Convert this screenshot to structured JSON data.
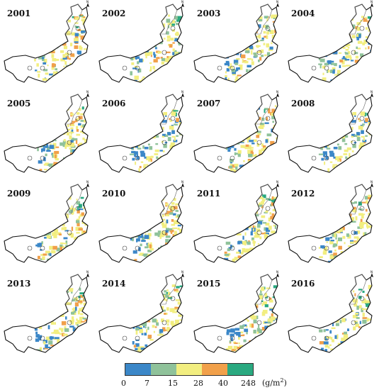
{
  "years": [
    "2001",
    "2002",
    "2003",
    "2004",
    "2005",
    "2006",
    "2007",
    "2008",
    "2009",
    "2010",
    "2011",
    "2012",
    "2013",
    "2014",
    "2015",
    "2016"
  ],
  "legend": {
    "colors": [
      "#3b87c8",
      "#8fc29a",
      "#f2ee80",
      "#f1a04a",
      "#2aa980"
    ],
    "ticks": [
      "0",
      "7",
      "15",
      "28",
      "40",
      "248"
    ],
    "unit_base": "(g/m",
    "unit_sup": "2",
    "unit_close": ")"
  },
  "north_arrow": "N"
}
